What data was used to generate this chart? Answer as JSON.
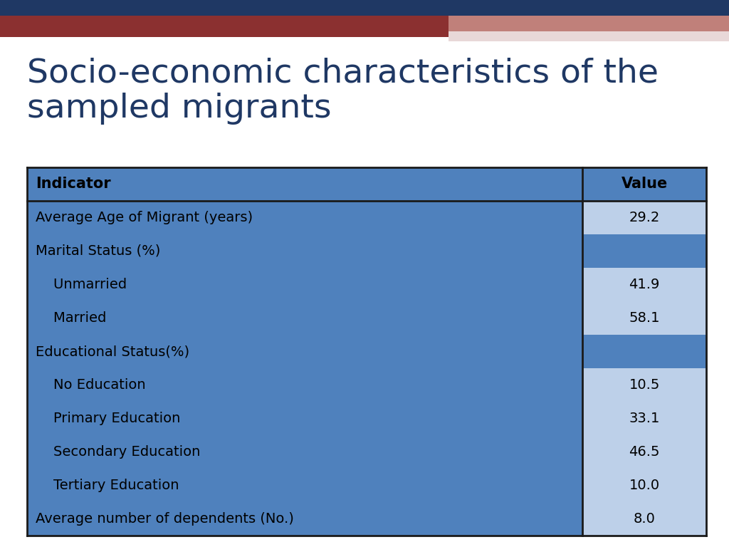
{
  "title_line1": "Socio-economic characteristics of the",
  "title_line2": "sampled migrants",
  "title_color": "#1F3864",
  "title_fontsize": 34,
  "background_color": "#FFFFFF",
  "header_bg": "#4F81BD",
  "header_text_color": "#000000",
  "row_bg_blue": "#4F81BD",
  "row_bg_light": "#BDD0E9",
  "table_border_color": "#1A1A1A",
  "top_bar1_color": "#1F3864",
  "top_bar2_color": "#8B3030",
  "top_bar3_color": "#C0807A",
  "top_bar4_color": "#E8D8D8",
  "rows": [
    {
      "indicator": "Average Age of Migrant (years)",
      "value": "29.2",
      "indent": 0,
      "row_bg": "#4F81BD",
      "val_bg": "#BDD0E9"
    },
    {
      "indicator": "Marital Status (%)",
      "value": "",
      "indent": 0,
      "row_bg": "#4F81BD",
      "val_bg": "#4F81BD"
    },
    {
      "indicator": "    Unmarried",
      "value": "41.9",
      "indent": 0,
      "row_bg": "#4F81BD",
      "val_bg": "#BDD0E9"
    },
    {
      "indicator": "    Married",
      "value": "58.1",
      "indent": 0,
      "row_bg": "#4F81BD",
      "val_bg": "#BDD0E9"
    },
    {
      "indicator": "Educational Status(%)",
      "value": "",
      "indent": 0,
      "row_bg": "#4F81BD",
      "val_bg": "#4F81BD"
    },
    {
      "indicator": "    No Education",
      "value": "10.5",
      "indent": 0,
      "row_bg": "#4F81BD",
      "val_bg": "#BDD0E9"
    },
    {
      "indicator": "    Primary Education",
      "value": "33.1",
      "indent": 0,
      "row_bg": "#4F81BD",
      "val_bg": "#BDD0E9"
    },
    {
      "indicator": "    Secondary Education",
      "value": "46.5",
      "indent": 0,
      "row_bg": "#4F81BD",
      "val_bg": "#BDD0E9"
    },
    {
      "indicator": "    Tertiary Education",
      "value": "10.0",
      "indent": 0,
      "row_bg": "#4F81BD",
      "val_bg": "#BDD0E9"
    },
    {
      "indicator": "Average number of dependents (No.)",
      "value": "8.0",
      "indent": 0,
      "row_bg": "#4F81BD",
      "val_bg": "#BDD0E9"
    }
  ]
}
